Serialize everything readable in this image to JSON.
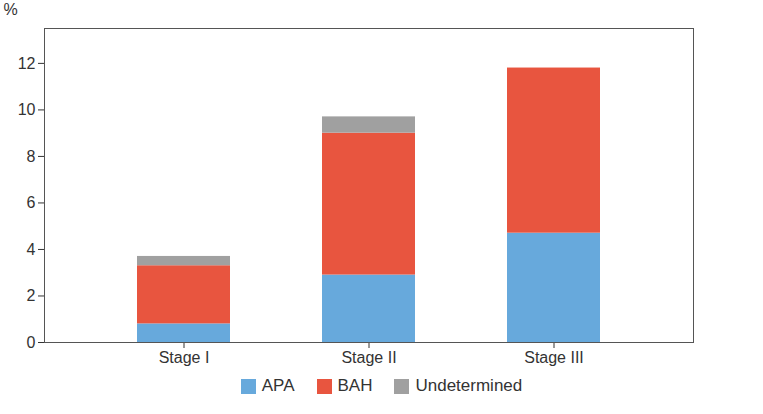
{
  "chart_data": {
    "type": "bar",
    "stacked": true,
    "y_label": "%",
    "categories": [
      "Stage I",
      "Stage II",
      "Stage III"
    ],
    "series": [
      {
        "name": "APA",
        "color": "#67a9dc",
        "values": [
          0.8,
          2.9,
          4.7
        ]
      },
      {
        "name": "BAH",
        "color": "#e8553f",
        "values": [
          2.5,
          6.1,
          7.1
        ]
      },
      {
        "name": "Undetermined",
        "color": "#a0a0a0",
        "values": [
          0.4,
          0.7,
          0
        ]
      }
    ],
    "ylim": [
      0,
      13.5
    ],
    "yticks": [
      0,
      2,
      4,
      6,
      8,
      10,
      12
    ],
    "grid": false,
    "legend": "bottom"
  }
}
